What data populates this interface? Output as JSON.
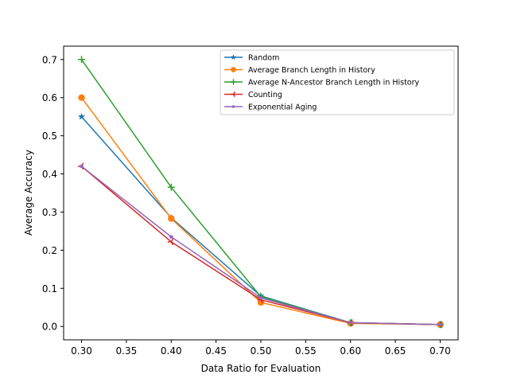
{
  "chart_data": {
    "type": "line",
    "title": "",
    "xlabel": "Data Ratio for Evaluation",
    "ylabel": "Average Accuracy",
    "x": [
      0.3,
      0.4,
      0.5,
      0.6,
      0.7
    ],
    "xlim": [
      0.28,
      0.72
    ],
    "ylim": [
      -0.035,
      0.735
    ],
    "xticks": [
      0.3,
      0.35,
      0.4,
      0.45,
      0.5,
      0.55,
      0.6,
      0.65,
      0.7
    ],
    "xtick_labels": [
      "0.30",
      "0.35",
      "0.40",
      "0.45",
      "0.50",
      "0.55",
      "0.60",
      "0.65",
      "0.70"
    ],
    "yticks": [
      0.0,
      0.1,
      0.2,
      0.3,
      0.4,
      0.5,
      0.6,
      0.7
    ],
    "ytick_labels": [
      "0.0",
      "0.1",
      "0.2",
      "0.3",
      "0.4",
      "0.5",
      "0.6",
      "0.7"
    ],
    "grid": false,
    "legend_position": "top-right",
    "series": [
      {
        "name": "Random",
        "color": "#1f77b4",
        "marker": "star",
        "values": [
          0.55,
          0.285,
          0.08,
          0.01,
          0.005
        ]
      },
      {
        "name": "Average Branch Length in History",
        "color": "#ff7f0e",
        "marker": "circle",
        "values": [
          0.6,
          0.283,
          0.063,
          0.008,
          0.005
        ]
      },
      {
        "name": "Average N-Ancestor Branch Length in History",
        "color": "#2ca02c",
        "marker": "plus",
        "values": [
          0.7,
          0.365,
          0.078,
          0.01,
          0.005
        ]
      },
      {
        "name": "Counting",
        "color": "#d62728",
        "marker": "tri-left",
        "values": [
          0.42,
          0.222,
          0.07,
          0.01,
          0.005
        ]
      },
      {
        "name": "Exponential Aging",
        "color": "#9467bd",
        "marker": "pentagon",
        "values": [
          0.42,
          0.235,
          0.075,
          0.01,
          0.005
        ]
      }
    ]
  }
}
